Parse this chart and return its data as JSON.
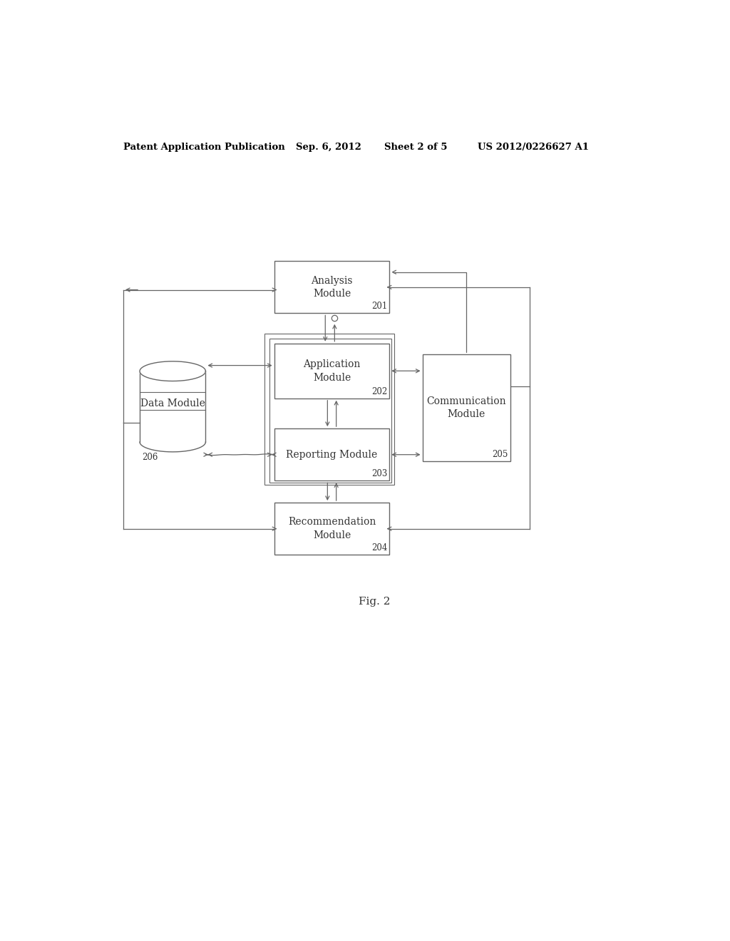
{
  "background_color": "#ffffff",
  "header_text": "Patent Application Publication",
  "header_date": "Sep. 6, 2012",
  "header_sheet": "Sheet 2 of 5",
  "header_patent": "US 2012/0226627 A1",
  "figure_label": "Fig. 2",
  "line_color": "#666666",
  "text_color": "#333333",
  "box_edge_color": "#666666",
  "font_size": 10,
  "header_font_size": 9.5
}
